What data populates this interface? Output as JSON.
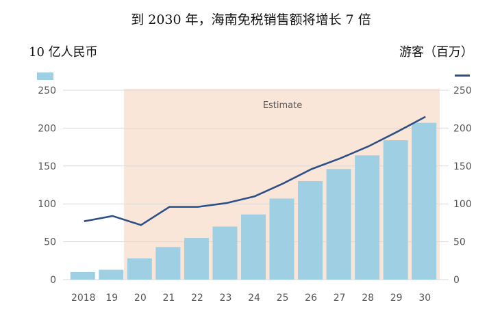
{
  "title": "到 2030 年，海南免税销售额将增长 7 倍",
  "left_unit": "10 亿人民币",
  "right_unit": "游客（百万）",
  "estimate_label": "Estimate",
  "colors": {
    "bar": "#9fcfe3",
    "line": "#2c4f86",
    "estimate_bg": "#fae6d8",
    "grid": "#d9d9d9"
  },
  "chart_data": {
    "type": "bar",
    "categories": [
      "2018",
      "19",
      "20",
      "21",
      "22",
      "23",
      "24",
      "25",
      "26",
      "27",
      "28",
      "29",
      "30"
    ],
    "series": [
      {
        "type": "bar",
        "axis": "left",
        "values": [
          10,
          13,
          28,
          43,
          55,
          70,
          86,
          107,
          130,
          146,
          164,
          184,
          207
        ]
      },
      {
        "type": "line",
        "axis": "right",
        "values": [
          77,
          84,
          72,
          96,
          96,
          101,
          110,
          127,
          146,
          160,
          176,
          195,
          215
        ]
      }
    ],
    "ylim": [
      0,
      250
    ],
    "y_ticks": [
      "0",
      "50",
      "100",
      "150",
      "200",
      "250"
    ],
    "estimate_range": [
      "20",
      "30"
    ]
  }
}
